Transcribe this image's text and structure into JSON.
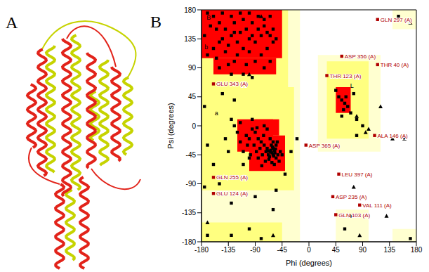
{
  "panel_labels": [
    "A",
    "B"
  ],
  "chart_data": {
    "type": "scatter",
    "x_label": "Phi (degrees)",
    "y_label": "Psi (degrees)",
    "xlim": [
      -180,
      180
    ],
    "ylim": [
      -180,
      180
    ],
    "xticks": [
      -180,
      -135,
      -90,
      -45,
      0,
      45,
      90,
      135,
      180
    ],
    "yticks": [
      -180,
      -135,
      -90,
      -45,
      0,
      45,
      90,
      135,
      180
    ],
    "grid": false,
    "tick_labels": true,
    "regions": [
      {
        "color": "#ffffd0",
        "boxes": [
          [
            -180,
            -15,
            -180,
            180
          ],
          [
            15,
            120,
            -40,
            110
          ],
          [
            45,
            100,
            -180,
            -130
          ],
          [
            140,
            180,
            -180,
            -160
          ],
          [
            140,
            180,
            150,
            180
          ]
        ]
      },
      {
        "color": "#ffff80",
        "boxes": [
          [
            -180,
            -35,
            60,
            180
          ],
          [
            -180,
            -25,
            -100,
            60
          ],
          [
            -180,
            -45,
            -180,
            -150
          ],
          [
            30,
            100,
            -20,
            100
          ]
        ]
      },
      {
        "color": "#ff0000",
        "boxes": [
          [
            -180,
            -45,
            105,
            180
          ],
          [
            -160,
            -55,
            80,
            105
          ],
          [
            -100,
            -40,
            -70,
            -15
          ],
          [
            -120,
            -60,
            -40,
            10
          ],
          [
            -90,
            -50,
            -15,
            10
          ],
          [
            45,
            70,
            20,
            60
          ]
        ]
      }
    ],
    "series": [
      {
        "marker": "square",
        "color": "#000000",
        "points": [
          [
            -65,
            -40
          ],
          [
            -60,
            -45
          ],
          [
            -58,
            -38
          ],
          [
            -62,
            -42
          ],
          [
            -70,
            -35
          ],
          [
            -55,
            -50
          ],
          [
            -68,
            -45
          ],
          [
            -63,
            -30
          ],
          [
            -57,
            -42
          ],
          [
            -72,
            -40
          ],
          [
            -60,
            -35
          ],
          [
            -66,
            -48
          ],
          [
            -52,
            -45
          ],
          [
            -75,
            -30
          ],
          [
            -64,
            -38
          ],
          [
            -59,
            -47
          ],
          [
            -61,
            -33
          ],
          [
            -69,
            -39
          ],
          [
            -56,
            -36
          ],
          [
            -67,
            -52
          ],
          [
            -80,
            -25
          ],
          [
            -85,
            -20
          ],
          [
            -90,
            -10
          ],
          [
            -78,
            -45
          ],
          [
            -95,
            -5
          ],
          [
            -100,
            -20
          ],
          [
            -73,
            -55
          ],
          [
            -50,
            -55
          ],
          [
            -48,
            -40
          ],
          [
            -82,
            -35
          ],
          [
            -88,
            -40
          ],
          [
            -92,
            -30
          ],
          [
            -105,
            -15
          ],
          [
            -110,
            -40
          ],
          [
            -115,
            -25
          ],
          [
            -120,
            -10
          ],
          [
            -98,
            -45
          ],
          [
            -76,
            -15
          ],
          [
            -70,
            -5
          ],
          [
            -65,
            -20
          ],
          [
            -60,
            -25
          ],
          [
            -55,
            -30
          ],
          [
            -85,
            -50
          ],
          [
            -100,
            -50
          ],
          [
            -62,
            -57
          ],
          [
            -58,
            -60
          ],
          [
            -125,
            0
          ],
          [
            -130,
            10
          ],
          [
            -115,
            5
          ],
          [
            -95,
            10
          ],
          [
            -75,
            0
          ],
          [
            -140,
            -20
          ],
          [
            -45,
            -45
          ],
          [
            -53,
            -25
          ],
          [
            -79,
            -62
          ],
          [
            -110,
            -60
          ],
          [
            -135,
            -40
          ],
          [
            -87,
            -3
          ],
          [
            -103,
            -30
          ],
          [
            -120,
            130
          ],
          [
            -130,
            140
          ],
          [
            -110,
            120
          ],
          [
            -140,
            150
          ],
          [
            -100,
            135
          ],
          [
            -125,
            160
          ],
          [
            -150,
            160
          ],
          [
            -90,
            130
          ],
          [
            -80,
            140
          ],
          [
            -70,
            145
          ],
          [
            -65,
            140
          ],
          [
            -75,
            155
          ],
          [
            -115,
            145
          ],
          [
            -135,
            125
          ],
          [
            -145,
            135
          ],
          [
            -105,
            150
          ],
          [
            -95,
            160
          ],
          [
            -85,
            170
          ],
          [
            -160,
            170
          ],
          [
            -155,
            150
          ],
          [
            -130,
            170
          ],
          [
            -120,
            110
          ],
          [
            -100,
            115
          ],
          [
            -140,
            115
          ],
          [
            -110,
            165
          ],
          [
            -150,
            130
          ],
          [
            -165,
            155
          ],
          [
            -60,
            130
          ],
          [
            -70,
            120
          ],
          [
            -80,
            110
          ],
          [
            -90,
            100
          ],
          [
            -125,
            100
          ],
          [
            -160,
            120
          ],
          [
            -170,
            175
          ],
          [
            -175,
            140
          ],
          [
            -135,
            95
          ],
          [
            -105,
            95
          ],
          [
            -60,
            150
          ],
          [
            -55,
            135
          ],
          [
            -85,
            150
          ],
          [
            -95,
            140
          ],
          [
            -115,
            175
          ],
          [
            -145,
            175
          ],
          [
            -125,
            145
          ],
          [
            -75,
            165
          ],
          [
            -65,
            170
          ],
          [
            -100,
            175
          ],
          [
            -155,
            105
          ],
          [
            -170,
            110
          ],
          [
            -130,
            80
          ],
          [
            -110,
            80
          ],
          [
            -95,
            75
          ],
          [
            -150,
            90
          ],
          [
            -75,
            90
          ],
          [
            -65,
            100
          ],
          [
            -160,
            -60
          ],
          [
            -170,
            -30
          ],
          [
            -150,
            -90
          ],
          [
            -130,
            -120
          ],
          [
            -100,
            -160
          ],
          [
            -80,
            -175
          ],
          [
            -170,
            -170
          ],
          [
            -145,
            50
          ],
          [
            -125,
            40
          ],
          [
            -175,
            -95
          ],
          [
            -60,
            -130
          ],
          [
            -90,
            -110
          ],
          [
            -40,
            -75
          ],
          [
            -30,
            -40
          ],
          [
            -20,
            -20
          ],
          [
            -130,
            -170
          ],
          [
            -175,
            30
          ],
          [
            -55,
            -100
          ],
          [
            55,
            40
          ],
          [
            60,
            35
          ],
          [
            50,
            45
          ],
          [
            65,
            30
          ],
          [
            58,
            25
          ],
          [
            62,
            45
          ],
          [
            70,
            20
          ],
          [
            45,
            55
          ],
          [
            80,
            10
          ],
          [
            90,
            0
          ],
          [
            55,
            15
          ],
          [
            75,
            50
          ],
          [
            80,
            -15
          ],
          [
            60,
            -160
          ],
          [
            150,
            170
          ],
          [
            170,
            -175
          ]
        ]
      },
      {
        "marker": "triangle",
        "color": "#000000",
        "points": [
          [
            80,
            15
          ],
          [
            95,
            -10
          ],
          [
            100,
            -5
          ],
          [
            140,
            -20
          ],
          [
            -80,
            170
          ],
          [
            85,
            -170
          ],
          [
            -170,
            -150
          ],
          [
            170,
            160
          ],
          [
            130,
            -140
          ],
          [
            -60,
            -170
          ],
          [
            70,
            -140
          ],
          [
            -100,
            80
          ],
          [
            120,
            30
          ],
          [
            160,
            -20
          ],
          [
            75,
            -95
          ]
        ]
      },
      {
        "marker": "square",
        "color": "#b00000",
        "points": [
          [
            115,
            165
          ],
          [
            55,
            108
          ],
          [
            115,
            95
          ],
          [
            30,
            78
          ],
          [
            -160,
            65
          ],
          [
            -5,
            -30
          ],
          [
            110,
            -15
          ],
          [
            -160,
            -80
          ],
          [
            50,
            -75
          ],
          [
            -160,
            -105
          ],
          [
            40,
            -110
          ],
          [
            85,
            -123
          ],
          [
            45,
            -138
          ]
        ],
        "labels": [
          "GLN 297 (A)",
          "ASP 356 (A)",
          "THR 40 (A)",
          "THR 123 (A)",
          "GLU 343 (A)",
          "ASP 365 (A)",
          "ALA 146 (A)",
          "GLN 255 (A)",
          "LEU 397 (A)",
          "GLU 124 (A)",
          "ASP 235 (A)",
          "VAL 111 (A)",
          "GLN 103 (A)"
        ]
      }
    ],
    "annotations": [
      {
        "text": "B",
        "x": -168,
        "y": 168
      },
      {
        "text": "b",
        "x": -172,
        "y": 122
      },
      {
        "text": "a",
        "x": -155,
        "y": 20
      },
      {
        "text": "L",
        "x": 72,
        "y": 62
      }
    ]
  }
}
